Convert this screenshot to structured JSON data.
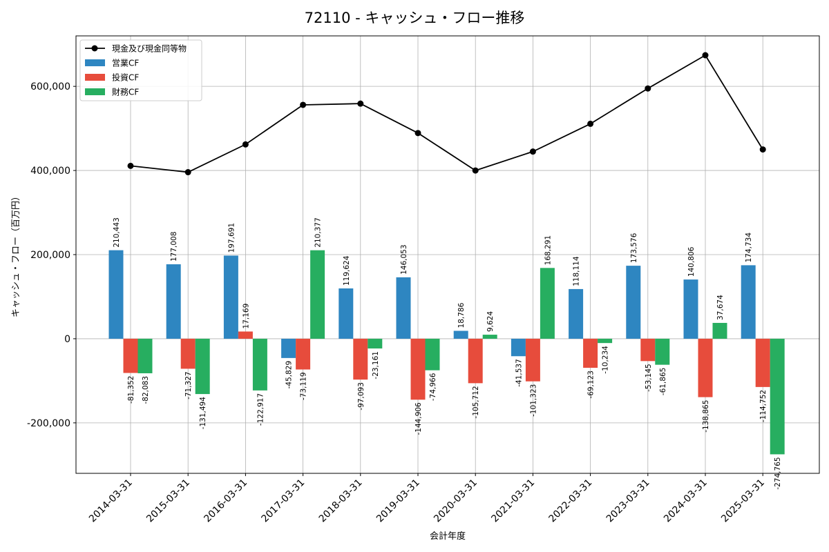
{
  "chart_data": {
    "type": "bar",
    "title": "72110 - キャッシュ・フロー推移",
    "xlabel": "会計年度",
    "ylabel": "キャッシュ・フロー（百万円）",
    "ylim": [
      -320000,
      720000
    ],
    "yticks": [
      -200000,
      0,
      200000,
      400000,
      600000
    ],
    "ytick_labels": [
      "-200,000",
      "0",
      "200,000",
      "400,000",
      "600,000"
    ],
    "grid": true,
    "legend_position": "top-left",
    "categories": [
      "2014-03-31",
      "2015-03-31",
      "2016-03-31",
      "2017-03-31",
      "2018-03-31",
      "2019-03-31",
      "2020-03-31",
      "2021-03-31",
      "2022-03-31",
      "2023-03-31",
      "2024-03-31",
      "2025-03-31"
    ],
    "series": [
      {
        "name": "営業CF",
        "kind": "bar",
        "color": "#2e86c1",
        "values": [
          210443,
          177008,
          197691,
          -45829,
          119624,
          146053,
          18786,
          -41537,
          118114,
          173576,
          140806,
          174734
        ],
        "labels": [
          "210,443",
          "177,008",
          "197,691",
          "-45,829",
          "119,624",
          "146,053",
          "18,786",
          "-41,537",
          "118,114",
          "173,576",
          "140,806",
          "174,734"
        ]
      },
      {
        "name": "投資CF",
        "kind": "bar",
        "color": "#e74c3c",
        "values": [
          -81352,
          -71327,
          17169,
          -73119,
          -97093,
          -144906,
          -105712,
          -101323,
          -69123,
          -53145,
          -138865,
          -114752
        ],
        "labels": [
          "-81,352",
          "-71,327",
          "17,169",
          "-73,119",
          "-97,093",
          "-144,906",
          "-105,712",
          "-101,323",
          "-69,123",
          "-53,145",
          "-138,865",
          "-114,752"
        ]
      },
      {
        "name": "財務CF",
        "kind": "bar",
        "color": "#27ae60",
        "values": [
          -82083,
          -131494,
          -122917,
          210377,
          -23161,
          -74966,
          9624,
          168291,
          -10234,
          -61865,
          37674,
          -274765
        ],
        "labels": [
          "-82,083",
          "-131,494",
          "-122,917",
          "210,377",
          "-23,161",
          "-74,966",
          "9,624",
          "168,291",
          "-10,234",
          "-61,865",
          "37,674",
          "-274,765"
        ]
      },
      {
        "name": "現金及び現金同等物",
        "kind": "line",
        "color": "#000000",
        "values": [
          411000,
          396000,
          462000,
          556000,
          559000,
          489000,
          400000,
          445000,
          511000,
          595000,
          674000,
          450000
        ]
      }
    ]
  }
}
